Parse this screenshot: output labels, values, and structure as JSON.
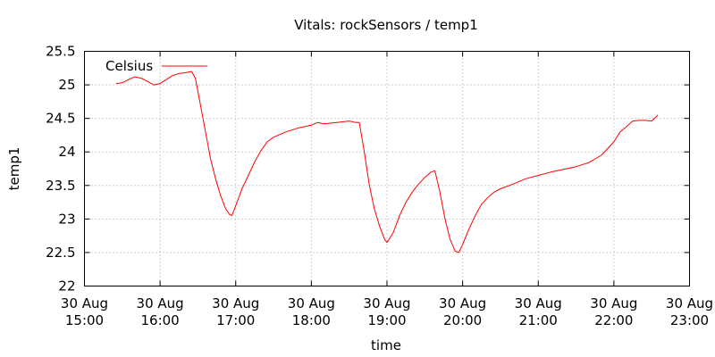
{
  "chart_data": {
    "type": "line",
    "title": "Vitals: rockSensors / temp1",
    "xlabel": "time",
    "ylabel": "temp1",
    "ylim": [
      22,
      25.5
    ],
    "xlim": [
      "2000-08-30T15:00",
      "2000-08-30T23:00"
    ],
    "y_ticks": [
      22,
      22.5,
      23,
      23.5,
      24,
      24.5,
      25,
      25.5
    ],
    "y_tick_labels": [
      "22",
      "22.5",
      "23",
      "23.5",
      "24",
      "24.5",
      "25",
      "25.5"
    ],
    "x_ticks": [
      "2000-08-30T15:00",
      "2000-08-30T16:00",
      "2000-08-30T17:00",
      "2000-08-30T18:00",
      "2000-08-30T19:00",
      "2000-08-30T20:00",
      "2000-08-30T21:00",
      "2000-08-30T22:00",
      "2000-08-30T23:00"
    ],
    "x_tick_labels": [
      [
        "30 Aug",
        "15:00"
      ],
      [
        "30 Aug",
        "16:00"
      ],
      [
        "30 Aug",
        "17:00"
      ],
      [
        "30 Aug",
        "18:00"
      ],
      [
        "30 Aug",
        "19:00"
      ],
      [
        "30 Aug",
        "20:00"
      ],
      [
        "30 Aug",
        "21:00"
      ],
      [
        "30 Aug",
        "22:00"
      ],
      [
        "30 Aug",
        "23:00"
      ]
    ],
    "grid": true,
    "legend_position": "top-left",
    "series": [
      {
        "name": "Celsius",
        "color": "#ff0000",
        "points": [
          [
            "2000-08-30T15:25",
            25.02
          ],
          [
            "2000-08-30T15:30",
            25.03
          ],
          [
            "2000-08-30T15:35",
            25.08
          ],
          [
            "2000-08-30T15:40",
            25.12
          ],
          [
            "2000-08-30T15:45",
            25.1
          ],
          [
            "2000-08-30T15:50",
            25.05
          ],
          [
            "2000-08-30T15:55",
            25.0
          ],
          [
            "2000-08-30T16:00",
            25.02
          ],
          [
            "2000-08-30T16:05",
            25.08
          ],
          [
            "2000-08-30T16:10",
            25.14
          ],
          [
            "2000-08-30T16:15",
            25.17
          ],
          [
            "2000-08-30T16:20",
            25.18
          ],
          [
            "2000-08-30T16:25",
            25.2
          ],
          [
            "2000-08-30T16:28",
            25.1
          ],
          [
            "2000-08-30T16:32",
            24.7
          ],
          [
            "2000-08-30T16:36",
            24.3
          ],
          [
            "2000-08-30T16:40",
            23.9
          ],
          [
            "2000-08-30T16:44",
            23.6
          ],
          [
            "2000-08-30T16:48",
            23.35
          ],
          [
            "2000-08-30T16:52",
            23.15
          ],
          [
            "2000-08-30T16:55",
            23.07
          ],
          [
            "2000-08-30T16:57",
            23.05
          ],
          [
            "2000-08-30T17:00",
            23.2
          ],
          [
            "2000-08-30T17:05",
            23.45
          ],
          [
            "2000-08-30T17:10",
            23.65
          ],
          [
            "2000-08-30T17:15",
            23.85
          ],
          [
            "2000-08-30T17:20",
            24.02
          ],
          [
            "2000-08-30T17:25",
            24.15
          ],
          [
            "2000-08-30T17:30",
            24.22
          ],
          [
            "2000-08-30T17:40",
            24.3
          ],
          [
            "2000-08-30T17:50",
            24.36
          ],
          [
            "2000-08-30T18:00",
            24.4
          ],
          [
            "2000-08-30T18:05",
            24.44
          ],
          [
            "2000-08-30T18:10",
            24.42
          ],
          [
            "2000-08-30T18:20",
            24.44
          ],
          [
            "2000-08-30T18:30",
            24.46
          ],
          [
            "2000-08-30T18:35",
            24.44
          ],
          [
            "2000-08-30T18:38",
            24.44
          ],
          [
            "2000-08-30T18:42",
            24.0
          ],
          [
            "2000-08-30T18:46",
            23.5
          ],
          [
            "2000-08-30T18:50",
            23.15
          ],
          [
            "2000-08-30T18:54",
            22.9
          ],
          [
            "2000-08-30T18:58",
            22.7
          ],
          [
            "2000-08-30T19:00",
            22.65
          ],
          [
            "2000-08-30T19:05",
            22.8
          ],
          [
            "2000-08-30T19:10",
            23.05
          ],
          [
            "2000-08-30T19:15",
            23.25
          ],
          [
            "2000-08-30T19:20",
            23.4
          ],
          [
            "2000-08-30T19:25",
            23.52
          ],
          [
            "2000-08-30T19:30",
            23.62
          ],
          [
            "2000-08-30T19:35",
            23.7
          ],
          [
            "2000-08-30T19:38",
            23.72
          ],
          [
            "2000-08-30T19:42",
            23.4
          ],
          [
            "2000-08-30T19:46",
            23.0
          ],
          [
            "2000-08-30T19:50",
            22.7
          ],
          [
            "2000-08-30T19:54",
            22.52
          ],
          [
            "2000-08-30T19:57",
            22.5
          ],
          [
            "2000-08-30T20:00",
            22.62
          ],
          [
            "2000-08-30T20:05",
            22.85
          ],
          [
            "2000-08-30T20:10",
            23.05
          ],
          [
            "2000-08-30T20:15",
            23.22
          ],
          [
            "2000-08-30T20:20",
            23.32
          ],
          [
            "2000-08-30T20:25",
            23.4
          ],
          [
            "2000-08-30T20:30",
            23.45
          ],
          [
            "2000-08-30T20:40",
            23.52
          ],
          [
            "2000-08-30T20:50",
            23.6
          ],
          [
            "2000-08-30T21:00",
            23.65
          ],
          [
            "2000-08-30T21:10",
            23.7
          ],
          [
            "2000-08-30T21:20",
            23.74
          ],
          [
            "2000-08-30T21:30",
            23.78
          ],
          [
            "2000-08-30T21:40",
            23.84
          ],
          [
            "2000-08-30T21:50",
            23.95
          ],
          [
            "2000-08-30T21:55",
            24.05
          ],
          [
            "2000-08-30T22:00",
            24.15
          ],
          [
            "2000-08-30T22:05",
            24.3
          ],
          [
            "2000-08-30T22:10",
            24.38
          ],
          [
            "2000-08-30T22:15",
            24.46
          ],
          [
            "2000-08-30T22:20",
            24.47
          ],
          [
            "2000-08-30T22:25",
            24.47
          ],
          [
            "2000-08-30T22:30",
            24.46
          ],
          [
            "2000-08-30T22:35",
            24.55
          ]
        ]
      }
    ]
  }
}
